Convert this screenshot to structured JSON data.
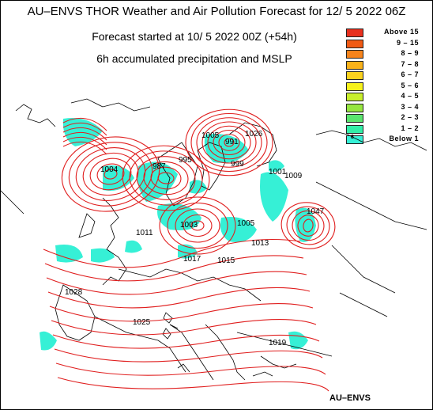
{
  "header": {
    "title": "AU–ENVS THOR Weather and Air Pollution Forecast for 12/ 5 2022  06Z",
    "forecast_start": "Forecast started at 10/ 5 2022  00Z (+54h)",
    "field": "6h accumulated precipitation and MSLP"
  },
  "legend": {
    "items": [
      {
        "label": "Above   15",
        "color": "#e8301e"
      },
      {
        "label": "9 –  15",
        "color": "#f05a14"
      },
      {
        "label": "8 –   9",
        "color": "#f7841c"
      },
      {
        "label": "7 –   8",
        "color": "#f9b21a"
      },
      {
        "label": "6 –   7",
        "color": "#fbd21e"
      },
      {
        "label": "5 –   6",
        "color": "#f7f21c"
      },
      {
        "label": "4 –   5",
        "color": "#c8ee2c"
      },
      {
        "label": "3 –   4",
        "color": "#96e640"
      },
      {
        "label": "2 –   3",
        "color": "#5ae46e"
      },
      {
        "label": "1 –   2",
        "color": "#32eea8"
      },
      {
        "label": "Below   1",
        "color": "#36f0d6",
        "mark": "8"
      }
    ]
  },
  "map": {
    "isobar_color": "#e01e1e",
    "coast_color": "#000000",
    "precip_color": "#36f0d6",
    "isobar_labels": [
      "1005",
      "991",
      "987",
      "995",
      "999",
      "1001",
      "1009",
      "1004",
      "1011",
      "1003",
      "1005",
      "1013",
      "1017",
      "1015",
      "1047",
      "1028",
      "1025",
      "1019",
      "1026"
    ]
  },
  "footer": {
    "credit": "AU–ENVS"
  }
}
